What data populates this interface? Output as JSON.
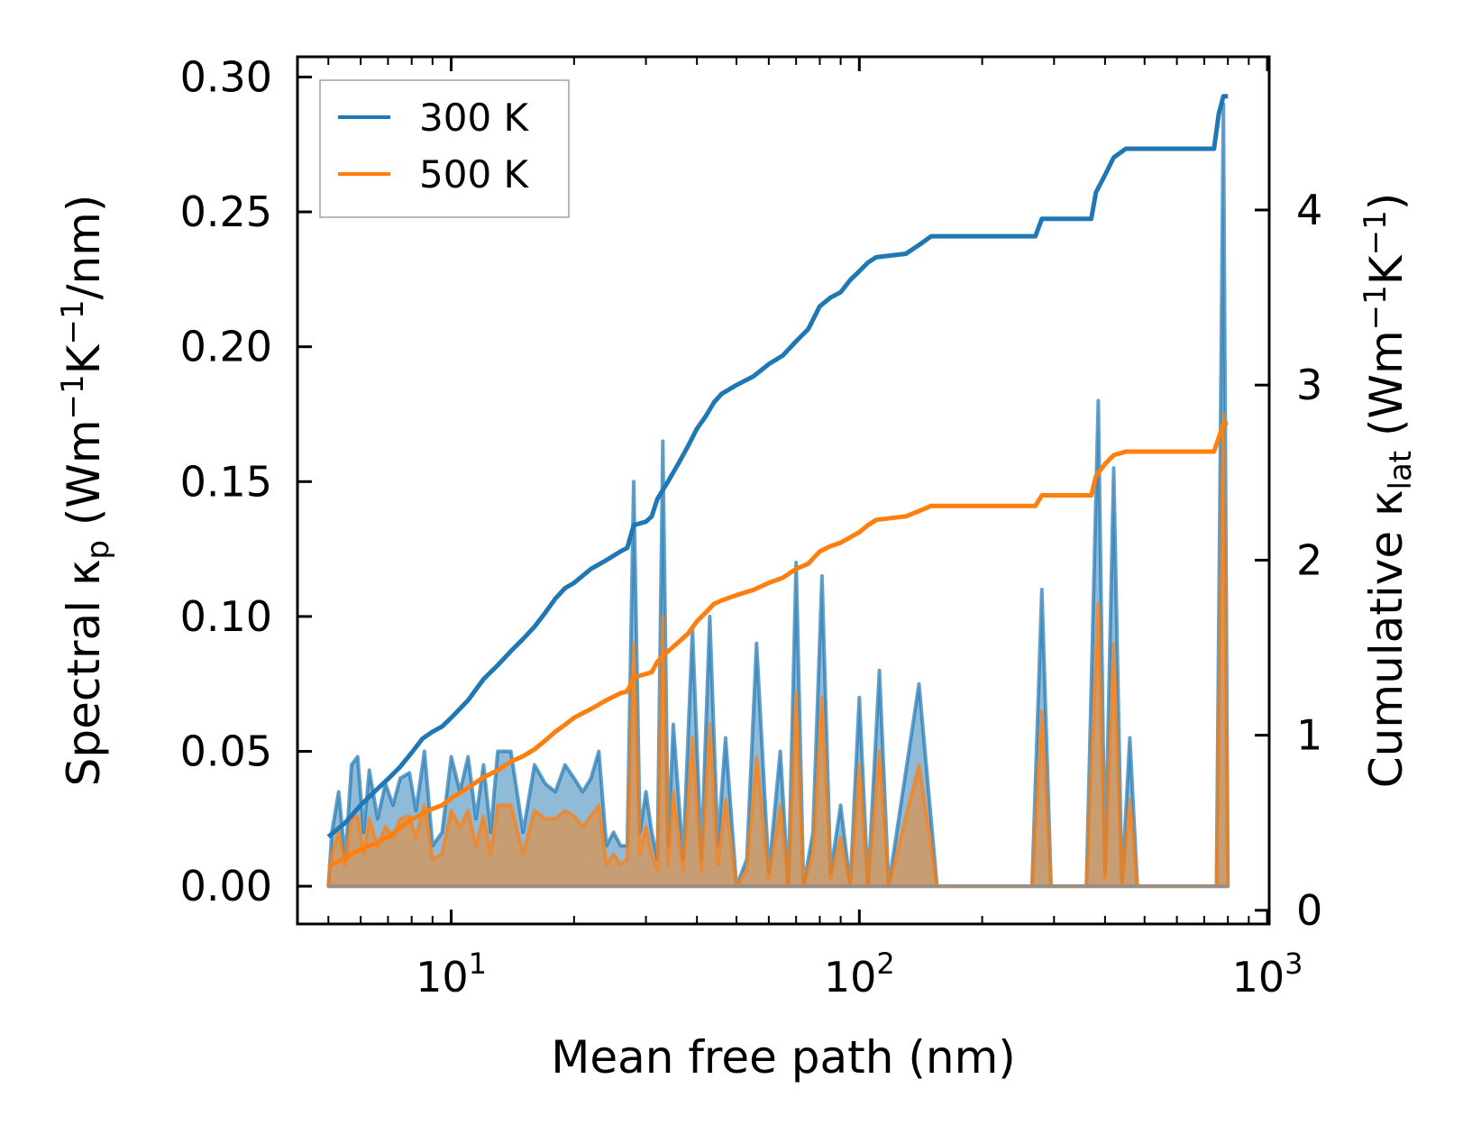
{
  "chart_data": {
    "type": "line",
    "title": "",
    "xlabel": "Mean free path (nm)",
    "ylabel": "Spectral κp (Wm−1K−1/nm)",
    "ylabel_parts": {
      "a": "Spectral κ",
      "sub": "p",
      "b": " (Wm",
      "sup1": "−1",
      "c": "K",
      "sup2": "−1",
      "d": "/nm)"
    },
    "y2label": "Cumulative κlat (Wm−1K−1)",
    "y2label_parts": {
      "a": "Cumulative κ",
      "sub": "lat",
      "b": " (Wm",
      "sup1": "−1",
      "c": "K",
      "sup2": "−1",
      "d": ")"
    },
    "xscale": "log",
    "xlim": [
      4.2,
      1010
    ],
    "ylim": [
      -0.014,
      0.3075
    ],
    "y2lim": [
      -0.078,
      4.875
    ],
    "x_ticks": [
      {
        "value": 10,
        "base": "10",
        "exp": "1"
      },
      {
        "value": 100,
        "base": "10",
        "exp": "2"
      },
      {
        "value": 1000,
        "base": "10",
        "exp": "3"
      }
    ],
    "y_ticks": [
      {
        "value": 0.0,
        "label": "0.00"
      },
      {
        "value": 0.05,
        "label": "0.05"
      },
      {
        "value": 0.1,
        "label": "0.10"
      },
      {
        "value": 0.15,
        "label": "0.15"
      },
      {
        "value": 0.2,
        "label": "0.20"
      },
      {
        "value": 0.25,
        "label": "0.25"
      },
      {
        "value": 0.3,
        "label": "0.30"
      }
    ],
    "y2_ticks": [
      {
        "value": 0,
        "label": "0"
      },
      {
        "value": 1,
        "label": "1"
      },
      {
        "value": 2,
        "label": "2"
      },
      {
        "value": 3,
        "label": "3"
      },
      {
        "value": 4,
        "label": "4"
      }
    ],
    "legend": {
      "location": "top-left",
      "entries": [
        "300 K",
        "500 K"
      ]
    },
    "series": [
      {
        "name": "300 K",
        "color": "#1f77b4",
        "axis": "right",
        "cumulative": [
          [
            5.0,
            0.42
          ],
          [
            5.5,
            0.5
          ],
          [
            6.0,
            0.6
          ],
          [
            6.5,
            0.68
          ],
          [
            7.0,
            0.75
          ],
          [
            7.5,
            0.82
          ],
          [
            8.0,
            0.9
          ],
          [
            8.5,
            0.98
          ],
          [
            9.0,
            1.02
          ],
          [
            9.5,
            1.05
          ],
          [
            10.0,
            1.1
          ],
          [
            11.0,
            1.2
          ],
          [
            12.0,
            1.32
          ],
          [
            13.0,
            1.4
          ],
          [
            14.0,
            1.48
          ],
          [
            15.0,
            1.55
          ],
          [
            16.0,
            1.62
          ],
          [
            17.0,
            1.7
          ],
          [
            18.0,
            1.78
          ],
          [
            19.0,
            1.84
          ],
          [
            20.0,
            1.87
          ],
          [
            22.0,
            1.95
          ],
          [
            24.0,
            2.0
          ],
          [
            26.0,
            2.05
          ],
          [
            27.0,
            2.07
          ],
          [
            28.0,
            2.2
          ],
          [
            30.0,
            2.22
          ],
          [
            31.0,
            2.25
          ],
          [
            32.0,
            2.35
          ],
          [
            34.0,
            2.45
          ],
          [
            36.0,
            2.55
          ],
          [
            38.0,
            2.65
          ],
          [
            40.0,
            2.75
          ],
          [
            42.0,
            2.82
          ],
          [
            44.0,
            2.9
          ],
          [
            46.0,
            2.95
          ],
          [
            50.0,
            3.0
          ],
          [
            55.0,
            3.05
          ],
          [
            60.0,
            3.12
          ],
          [
            65.0,
            3.17
          ],
          [
            70.0,
            3.25
          ],
          [
            75.0,
            3.32
          ],
          [
            80.0,
            3.45
          ],
          [
            85.0,
            3.5
          ],
          [
            90.0,
            3.53
          ],
          [
            95.0,
            3.6
          ],
          [
            100.0,
            3.65
          ],
          [
            105.0,
            3.7
          ],
          [
            110.0,
            3.73
          ],
          [
            130.0,
            3.75
          ],
          [
            140.0,
            3.8
          ],
          [
            150.0,
            3.85
          ],
          [
            270.0,
            3.85
          ],
          [
            280.0,
            3.95
          ],
          [
            370.0,
            3.95
          ],
          [
            380.0,
            4.1
          ],
          [
            400.0,
            4.2
          ],
          [
            420.0,
            4.3
          ],
          [
            450.0,
            4.35
          ],
          [
            740.0,
            4.35
          ],
          [
            760.0,
            4.55
          ],
          [
            780.0,
            4.65
          ],
          [
            800.0,
            4.65
          ]
        ],
        "spectral": [
          [
            5.0,
            0.0
          ],
          [
            5.1,
            0.02
          ],
          [
            5.3,
            0.035
          ],
          [
            5.5,
            0.01
          ],
          [
            5.7,
            0.045
          ],
          [
            5.9,
            0.048
          ],
          [
            6.1,
            0.02
          ],
          [
            6.3,
            0.043
          ],
          [
            6.6,
            0.025
          ],
          [
            6.9,
            0.038
          ],
          [
            7.2,
            0.03
          ],
          [
            7.5,
            0.04
          ],
          [
            7.9,
            0.042
          ],
          [
            8.2,
            0.028
          ],
          [
            8.6,
            0.05
          ],
          [
            9.0,
            0.015
          ],
          [
            9.5,
            0.02
          ],
          [
            10.0,
            0.048
          ],
          [
            10.5,
            0.035
          ],
          [
            11.0,
            0.048
          ],
          [
            11.5,
            0.025
          ],
          [
            12.0,
            0.045
          ],
          [
            12.5,
            0.02
          ],
          [
            13.0,
            0.05
          ],
          [
            14.0,
            0.05
          ],
          [
            15.0,
            0.02
          ],
          [
            16.0,
            0.045
          ],
          [
            17.0,
            0.038
          ],
          [
            18.0,
            0.035
          ],
          [
            19.0,
            0.045
          ],
          [
            20.0,
            0.04
          ],
          [
            21.0,
            0.035
          ],
          [
            22.0,
            0.04
          ],
          [
            23.0,
            0.05
          ],
          [
            24.0,
            0.015
          ],
          [
            25.0,
            0.02
          ],
          [
            26.0,
            0.015
          ],
          [
            27.0,
            0.015
          ],
          [
            28.0,
            0.15
          ],
          [
            29.0,
            0.02
          ],
          [
            30.0,
            0.035
          ],
          [
            31.0,
            0.02
          ],
          [
            32.0,
            0.01
          ],
          [
            33.0,
            0.165
          ],
          [
            34.0,
            0.015
          ],
          [
            35.0,
            0.06
          ],
          [
            37.0,
            0.01
          ],
          [
            39.0,
            0.095
          ],
          [
            41.0,
            0.01
          ],
          [
            43.0,
            0.1
          ],
          [
            45.0,
            0.015
          ],
          [
            47.0,
            0.055
          ],
          [
            50.0,
            0.0
          ],
          [
            53.0,
            0.01
          ],
          [
            56.0,
            0.09
          ],
          [
            60.0,
            0.005
          ],
          [
            64.0,
            0.05
          ],
          [
            67.0,
            0.0
          ],
          [
            70.0,
            0.12
          ],
          [
            73.0,
            0.0
          ],
          [
            77.0,
            0.02
          ],
          [
            81.0,
            0.115
          ],
          [
            85.0,
            0.005
          ],
          [
            90.0,
            0.03
          ],
          [
            95.0,
            0.0
          ],
          [
            100.0,
            0.07
          ],
          [
            105.0,
            0.0
          ],
          [
            112.0,
            0.08
          ],
          [
            118.0,
            0.0
          ],
          [
            140.0,
            0.075
          ],
          [
            155.0,
            0.0
          ],
          [
            265.0,
            0.0
          ],
          [
            280.0,
            0.11
          ],
          [
            295.0,
            0.0
          ],
          [
            360.0,
            0.0
          ],
          [
            385.0,
            0.18
          ],
          [
            400.0,
            0.005
          ],
          [
            420.0,
            0.155
          ],
          [
            440.0,
            0.0
          ],
          [
            460.0,
            0.055
          ],
          [
            480.0,
            0.0
          ],
          [
            750.0,
            0.0
          ],
          [
            780.0,
            0.29
          ],
          [
            800.0,
            0.0
          ]
        ]
      },
      {
        "name": "500 K",
        "color": "#ff7f0e",
        "axis": "right",
        "cumulative": [
          [
            5.0,
            0.25
          ],
          [
            5.5,
            0.3
          ],
          [
            6.0,
            0.35
          ],
          [
            6.5,
            0.38
          ],
          [
            7.0,
            0.42
          ],
          [
            7.5,
            0.47
          ],
          [
            8.0,
            0.52
          ],
          [
            8.5,
            0.55
          ],
          [
            9.0,
            0.58
          ],
          [
            9.5,
            0.6
          ],
          [
            10.0,
            0.64
          ],
          [
            11.0,
            0.7
          ],
          [
            12.0,
            0.76
          ],
          [
            13.0,
            0.8
          ],
          [
            14.0,
            0.85
          ],
          [
            15.0,
            0.88
          ],
          [
            16.0,
            0.92
          ],
          [
            17.0,
            0.97
          ],
          [
            18.0,
            1.02
          ],
          [
            19.0,
            1.06
          ],
          [
            20.0,
            1.1
          ],
          [
            22.0,
            1.15
          ],
          [
            24.0,
            1.2
          ],
          [
            26.0,
            1.24
          ],
          [
            27.0,
            1.25
          ],
          [
            28.0,
            1.33
          ],
          [
            30.0,
            1.35
          ],
          [
            31.0,
            1.36
          ],
          [
            32.0,
            1.42
          ],
          [
            34.0,
            1.48
          ],
          [
            36.0,
            1.53
          ],
          [
            38.0,
            1.58
          ],
          [
            40.0,
            1.65
          ],
          [
            42.0,
            1.7
          ],
          [
            44.0,
            1.75
          ],
          [
            46.0,
            1.77
          ],
          [
            50.0,
            1.8
          ],
          [
            55.0,
            1.83
          ],
          [
            60.0,
            1.87
          ],
          [
            65.0,
            1.9
          ],
          [
            70.0,
            1.95
          ],
          [
            75.0,
            1.98
          ],
          [
            80.0,
            2.05
          ],
          [
            85.0,
            2.08
          ],
          [
            90.0,
            2.1
          ],
          [
            95.0,
            2.13
          ],
          [
            100.0,
            2.16
          ],
          [
            105.0,
            2.2
          ],
          [
            110.0,
            2.23
          ],
          [
            130.0,
            2.25
          ],
          [
            140.0,
            2.28
          ],
          [
            150.0,
            2.31
          ],
          [
            270.0,
            2.31
          ],
          [
            280.0,
            2.37
          ],
          [
            370.0,
            2.37
          ],
          [
            380.0,
            2.48
          ],
          [
            400.0,
            2.55
          ],
          [
            420.0,
            2.6
          ],
          [
            450.0,
            2.62
          ],
          [
            740.0,
            2.62
          ],
          [
            760.0,
            2.7
          ],
          [
            780.0,
            2.78
          ],
          [
            800.0,
            2.78
          ]
        ],
        "spectral": [
          [
            5.0,
            0.0
          ],
          [
            5.1,
            0.012
          ],
          [
            5.3,
            0.02
          ],
          [
            5.5,
            0.008
          ],
          [
            5.7,
            0.025
          ],
          [
            5.9,
            0.026
          ],
          [
            6.1,
            0.012
          ],
          [
            6.3,
            0.025
          ],
          [
            6.6,
            0.015
          ],
          [
            6.9,
            0.022
          ],
          [
            7.2,
            0.018
          ],
          [
            7.5,
            0.025
          ],
          [
            7.9,
            0.026
          ],
          [
            8.2,
            0.018
          ],
          [
            8.6,
            0.03
          ],
          [
            9.0,
            0.01
          ],
          [
            9.5,
            0.012
          ],
          [
            10.0,
            0.028
          ],
          [
            10.5,
            0.022
          ],
          [
            11.0,
            0.028
          ],
          [
            11.5,
            0.015
          ],
          [
            12.0,
            0.026
          ],
          [
            12.5,
            0.012
          ],
          [
            13.0,
            0.03
          ],
          [
            14.0,
            0.03
          ],
          [
            15.0,
            0.012
          ],
          [
            16.0,
            0.028
          ],
          [
            17.0,
            0.025
          ],
          [
            18.0,
            0.025
          ],
          [
            19.0,
            0.028
          ],
          [
            20.0,
            0.026
          ],
          [
            21.0,
            0.022
          ],
          [
            22.0,
            0.026
          ],
          [
            23.0,
            0.03
          ],
          [
            24.0,
            0.008
          ],
          [
            25.0,
            0.012
          ],
          [
            26.0,
            0.008
          ],
          [
            27.0,
            0.01
          ],
          [
            28.0,
            0.09
          ],
          [
            29.0,
            0.012
          ],
          [
            30.0,
            0.022
          ],
          [
            31.0,
            0.012
          ],
          [
            32.0,
            0.006
          ],
          [
            33.0,
            0.1
          ],
          [
            34.0,
            0.008
          ],
          [
            35.0,
            0.035
          ],
          [
            37.0,
            0.006
          ],
          [
            39.0,
            0.055
          ],
          [
            41.0,
            0.006
          ],
          [
            43.0,
            0.06
          ],
          [
            45.0,
            0.008
          ],
          [
            47.0,
            0.032
          ],
          [
            50.0,
            0.0
          ],
          [
            53.0,
            0.006
          ],
          [
            56.0,
            0.048
          ],
          [
            60.0,
            0.003
          ],
          [
            64.0,
            0.03
          ],
          [
            67.0,
            0.0
          ],
          [
            70.0,
            0.072
          ],
          [
            73.0,
            0.0
          ],
          [
            77.0,
            0.012
          ],
          [
            81.0,
            0.07
          ],
          [
            85.0,
            0.003
          ],
          [
            90.0,
            0.018
          ],
          [
            95.0,
            0.0
          ],
          [
            100.0,
            0.045
          ],
          [
            105.0,
            0.0
          ],
          [
            112.0,
            0.05
          ],
          [
            118.0,
            0.0
          ],
          [
            140.0,
            0.045
          ],
          [
            155.0,
            0.0
          ],
          [
            265.0,
            0.0
          ],
          [
            280.0,
            0.065
          ],
          [
            295.0,
            0.0
          ],
          [
            360.0,
            0.0
          ],
          [
            385.0,
            0.105
          ],
          [
            400.0,
            0.003
          ],
          [
            420.0,
            0.09
          ],
          [
            440.0,
            0.0
          ],
          [
            460.0,
            0.032
          ],
          [
            480.0,
            0.0
          ],
          [
            750.0,
            0.0
          ],
          [
            780.0,
            0.175
          ],
          [
            800.0,
            0.0
          ]
        ]
      }
    ]
  }
}
